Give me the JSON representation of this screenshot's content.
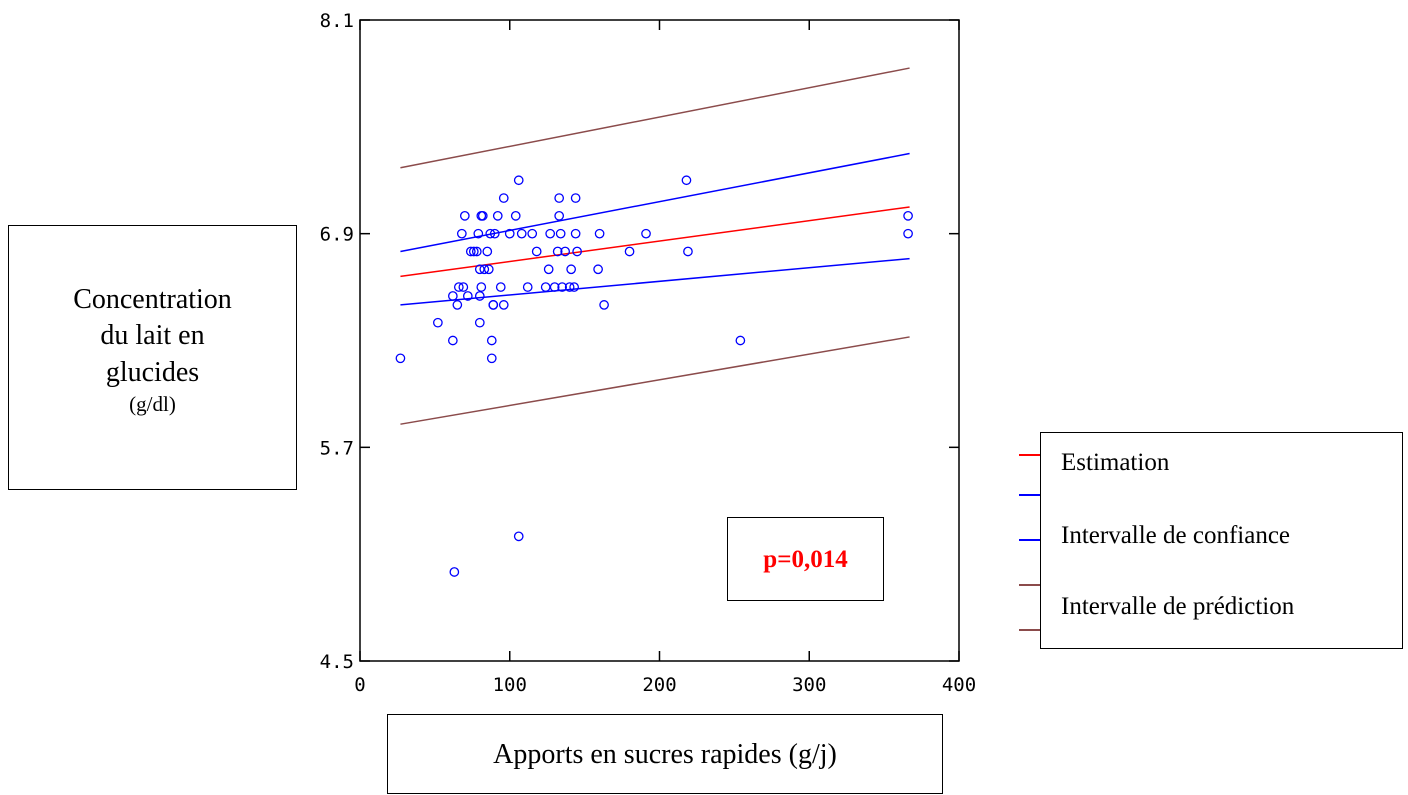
{
  "chart_data": {
    "type": "scatter",
    "xlabel": "Apports en sucres rapides (g/j)",
    "ylabel": {
      "lines": [
        "Concentration",
        "du lait en",
        "glucides"
      ],
      "unit": "(g/dl)"
    },
    "xlim": [
      0,
      400
    ],
    "ylim": [
      4.5,
      8.1
    ],
    "xticks": [
      "0",
      "100",
      "200",
      "300",
      "400"
    ],
    "yticks": [
      "4.5",
      "5.7",
      "6.9",
      "8.1"
    ],
    "annotation": "p=0,014",
    "colors": {
      "points": "#0000ff",
      "estimation": "#ff0000",
      "confidence": "#0000ff",
      "prediction": "#8b4b4b"
    },
    "legend": [
      {
        "label": "Estimation",
        "color": "#ff0000"
      },
      {
        "label": "Intervalle de confiance",
        "color": "#0000ff"
      },
      {
        "label": "Intervalle de prédiction",
        "color": "#8b4b4b"
      }
    ],
    "lines": {
      "estimation": {
        "x": [
          27,
          367
        ],
        "y": [
          6.66,
          7.05
        ]
      },
      "confidence_upper": {
        "x": [
          27,
          367
        ],
        "y": [
          6.8,
          7.35
        ]
      },
      "confidence_lower": {
        "x": [
          27,
          367
        ],
        "y": [
          6.5,
          6.76
        ]
      },
      "prediction_upper": {
        "x": [
          27,
          367
        ],
        "y": [
          7.27,
          7.83
        ]
      },
      "prediction_lower": {
        "x": [
          27,
          367
        ],
        "y": [
          5.83,
          6.32
        ]
      }
    },
    "points": [
      [
        27,
        6.2
      ],
      [
        52,
        6.4
      ],
      [
        62,
        6.3
      ],
      [
        62,
        6.55
      ],
      [
        63,
        5.0
      ],
      [
        65,
        6.5
      ],
      [
        66,
        6.6
      ],
      [
        68,
        6.9
      ],
      [
        69,
        6.6
      ],
      [
        70,
        7.0
      ],
      [
        72,
        6.55
      ],
      [
        74,
        6.8
      ],
      [
        76,
        6.8
      ],
      [
        78,
        6.8
      ],
      [
        79,
        6.9
      ],
      [
        80,
        6.7
      ],
      [
        80,
        6.55
      ],
      [
        80,
        6.4
      ],
      [
        81,
        6.6
      ],
      [
        81,
        7.0
      ],
      [
        82,
        7.0
      ],
      [
        83,
        6.7
      ],
      [
        85,
        6.8
      ],
      [
        86,
        6.7
      ],
      [
        87,
        6.9
      ],
      [
        88,
        6.2
      ],
      [
        88,
        6.3
      ],
      [
        89,
        6.5
      ],
      [
        89,
        6.5
      ],
      [
        90,
        6.9
      ],
      [
        92,
        7.0
      ],
      [
        94,
        6.6
      ],
      [
        96,
        7.1
      ],
      [
        96,
        6.5
      ],
      [
        100,
        6.9
      ],
      [
        104,
        7.0
      ],
      [
        106,
        5.2
      ],
      [
        106,
        7.2
      ],
      [
        108,
        6.9
      ],
      [
        112,
        6.6
      ],
      [
        115,
        6.9
      ],
      [
        118,
        6.8
      ],
      [
        124,
        6.6
      ],
      [
        126,
        6.7
      ],
      [
        127,
        6.9
      ],
      [
        130,
        6.6
      ],
      [
        132,
        6.8
      ],
      [
        133,
        7.0
      ],
      [
        133,
        7.1
      ],
      [
        134,
        6.9
      ],
      [
        135,
        6.6
      ],
      [
        137,
        6.8
      ],
      [
        140,
        6.6
      ],
      [
        141,
        6.7
      ],
      [
        143,
        6.6
      ],
      [
        144,
        6.9
      ],
      [
        144,
        7.1
      ],
      [
        145,
        6.8
      ],
      [
        159,
        6.7
      ],
      [
        160,
        6.9
      ],
      [
        163,
        6.5
      ],
      [
        180,
        6.8
      ],
      [
        191,
        6.9
      ],
      [
        218,
        7.2
      ],
      [
        219,
        6.8
      ],
      [
        254,
        6.3
      ],
      [
        366,
        7.0
      ],
      [
        366,
        6.9
      ]
    ]
  }
}
